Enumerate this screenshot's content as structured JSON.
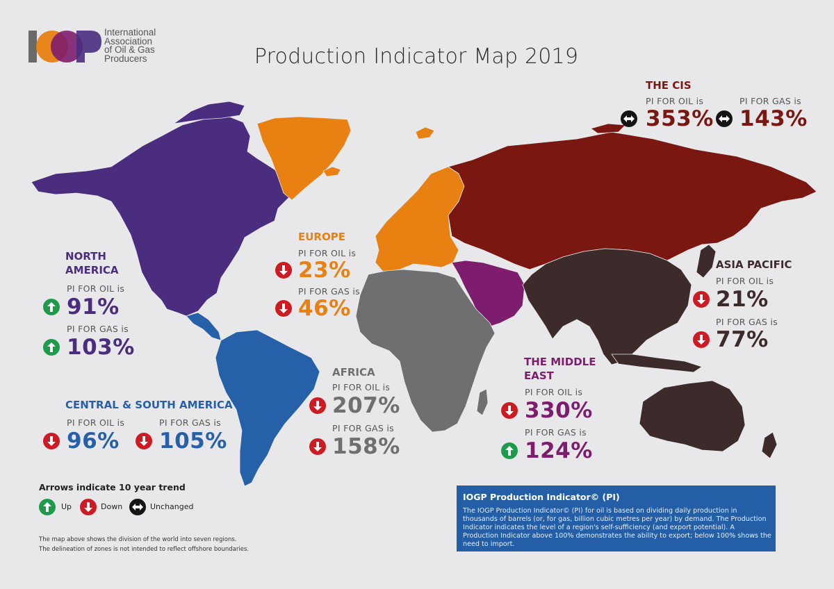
{
  "logo": {
    "letters": "IOGP",
    "text_lines": [
      "International",
      "Association",
      "of Oil & Gas",
      "Producers"
    ]
  },
  "title": "Production Indicator Map 2019",
  "regions": {
    "north_america": {
      "name": "NORTH AMERICA",
      "oil_label": "PI FOR OIL is",
      "oil_value": "91%",
      "oil_trend": "up",
      "gas_label": "PI FOR GAS is",
      "gas_value": "103%",
      "gas_trend": "up",
      "color": "#4a2d7f"
    },
    "central_south_america": {
      "name": "CENTRAL & SOUTH AMERICA",
      "oil_label": "PI FOR OIL is",
      "oil_value": "96%",
      "oil_trend": "down",
      "gas_label": "PI FOR GAS is",
      "gas_value": "105%",
      "gas_trend": "down",
      "color": "#2660a8"
    },
    "europe": {
      "name": "EUROPE",
      "oil_label": "PI FOR OIL is",
      "oil_value": "23%",
      "oil_trend": "down",
      "gas_label": "PI FOR GAS is",
      "gas_value": "46%",
      "gas_trend": "down",
      "color": "#e88012"
    },
    "africa": {
      "name": "AFRICA",
      "oil_label": "PI FOR OIL is",
      "oil_value": "207%",
      "oil_trend": "down",
      "gas_label": "PI FOR GAS is",
      "gas_value": "158%",
      "gas_trend": "down",
      "color": "#6f6f71"
    },
    "middle_east": {
      "name": "THE MIDDLE EAST",
      "oil_label": "PI FOR OIL is",
      "oil_value": "330%",
      "oil_trend": "down",
      "gas_label": "PI FOR GAS is",
      "gas_value": "124%",
      "gas_trend": "up",
      "color": "#7e1d6e"
    },
    "cis": {
      "name": "THE CIS",
      "oil_label": "PI FOR OIL is",
      "oil_value": "353%",
      "oil_trend": "unchanged",
      "gas_label": "PI FOR GAS is",
      "gas_value": "143%",
      "gas_trend": "unchanged",
      "color": "#7b1711"
    },
    "asia_pacific": {
      "name": "ASIA PACIFIC",
      "oil_label": "PI FOR OIL is",
      "oil_value": "21%",
      "oil_trend": "down",
      "gas_label": "PI FOR GAS is",
      "gas_value": "77%",
      "gas_trend": "down",
      "color": "#3d2a2a"
    }
  },
  "legend": {
    "title": "Arrows indicate 10 year trend",
    "up": "Up",
    "down": "Down",
    "unchanged": "Unchanged"
  },
  "notes": [
    "The map above shows the division of the world into seven regions.",
    "The delineation of zones is not intended to reflect offshore boundaries."
  ],
  "info_box": {
    "heading": "IOGP Production Indicator© (PI)",
    "body": "The IOGP Production Indicator© (PI) for oil is based on dividing daily production in thousands of barrels (or, for gas, billion cubic metres per year) by demand. The Production Indicator indicates the level of a region's self-sufficiency (and export potential). A Production Indicator above 100% demonstrates the ability to export; below 100% shows the need to import."
  },
  "trend_colors": {
    "up": "#1e9b4a",
    "down": "#cc1b23",
    "unchanged": "#141414"
  }
}
